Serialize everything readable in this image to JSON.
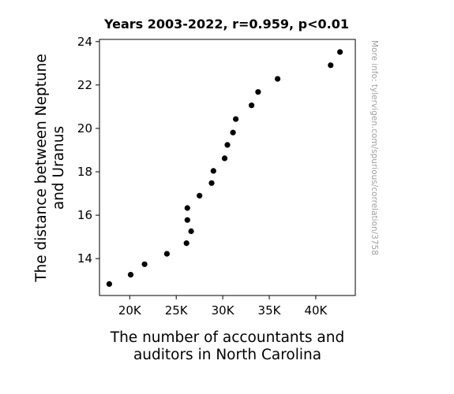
{
  "chart_data": {
    "type": "scatter",
    "title": "Years 2003-2022, r=0.959, p<0.01",
    "xlabel_lines": [
      "The number of accountants and",
      "auditors in North Carolina"
    ],
    "ylabel_lines": [
      "The distance between Neptune",
      "and Uranus"
    ],
    "watermark": "More info: tylervigen.com/spurious/correlation/3758",
    "xlim": [
      16750,
      44250
    ],
    "ylim": [
      12.3,
      24.1
    ],
    "xticks": [
      {
        "value": 20000,
        "label": "20K"
      },
      {
        "value": 25000,
        "label": "25K"
      },
      {
        "value": 30000,
        "label": "30K"
      },
      {
        "value": 35000,
        "label": "35K"
      },
      {
        "value": 40000,
        "label": "40K"
      }
    ],
    "yticks": [
      {
        "value": 14,
        "label": "14"
      },
      {
        "value": 16,
        "label": "16"
      },
      {
        "value": 18,
        "label": "18"
      },
      {
        "value": 20,
        "label": "20"
      },
      {
        "value": 22,
        "label": "22"
      },
      {
        "value": 24,
        "label": "24"
      }
    ],
    "marker_color": "#000000",
    "points": [
      {
        "x": 17800,
        "y": 12.83
      },
      {
        "x": 20100,
        "y": 13.26
      },
      {
        "x": 21600,
        "y": 13.74
      },
      {
        "x": 24000,
        "y": 14.22
      },
      {
        "x": 26100,
        "y": 14.71
      },
      {
        "x": 26600,
        "y": 15.26
      },
      {
        "x": 26200,
        "y": 15.78
      },
      {
        "x": 26200,
        "y": 16.33
      },
      {
        "x": 27500,
        "y": 16.9
      },
      {
        "x": 28800,
        "y": 17.48
      },
      {
        "x": 29000,
        "y": 18.04
      },
      {
        "x": 30200,
        "y": 18.62
      },
      {
        "x": 30500,
        "y": 19.24
      },
      {
        "x": 31100,
        "y": 19.81
      },
      {
        "x": 31400,
        "y": 20.43
      },
      {
        "x": 33100,
        "y": 21.06
      },
      {
        "x": 33800,
        "y": 21.68
      },
      {
        "x": 35900,
        "y": 22.28
      },
      {
        "x": 41600,
        "y": 22.91
      },
      {
        "x": 42600,
        "y": 23.52
      }
    ]
  }
}
